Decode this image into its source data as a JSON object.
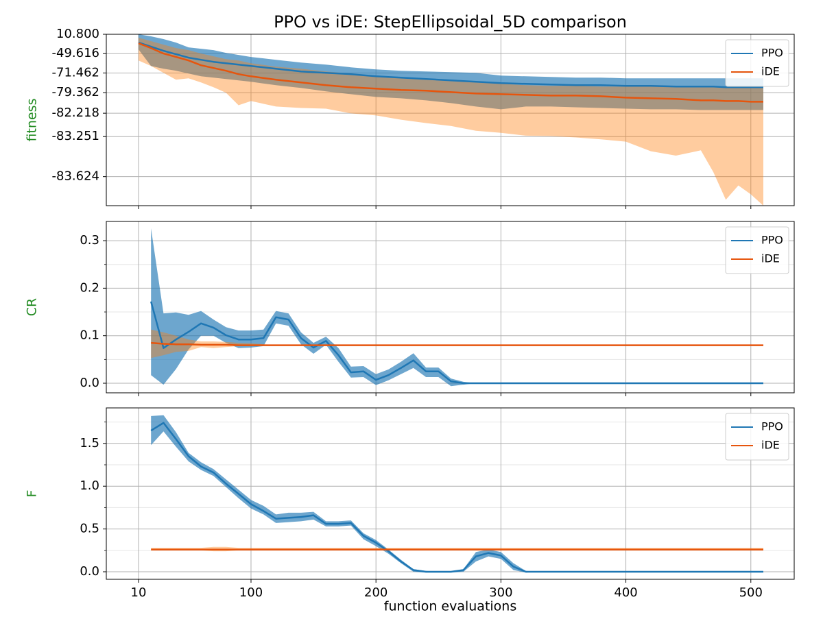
{
  "chart_data": [
    {
      "type": "line",
      "title": "PPO vs iDE: StepEllipsoidal_5D comparison",
      "ylabel": "fitness",
      "ylabel_color": "#228b22",
      "x": [
        10,
        20,
        30,
        40,
        50,
        60,
        70,
        80,
        90,
        100,
        120,
        140,
        160,
        180,
        200,
        220,
        240,
        260,
        280,
        300,
        320,
        340,
        360,
        380,
        400,
        420,
        440,
        460,
        470,
        480,
        490,
        500,
        510
      ],
      "xlim": [
        -15.8,
        534.7
      ],
      "xticks": [
        10,
        100,
        200,
        300,
        400,
        500
      ],
      "ylim": [
        -83.664,
        10.8
      ],
      "yscale": "log",
      "ylog_shift": 83.675,
      "yticks": [
        {
          "value": 10.8,
          "label": "10.800"
        },
        {
          "value": -49.616,
          "label": "-49.616"
        },
        {
          "value": -71.462,
          "label": "-71.462"
        },
        {
          "value": -79.362,
          "label": "-79.362"
        },
        {
          "value": -82.218,
          "label": "-82.218"
        },
        {
          "value": -83.251,
          "label": "-83.251"
        },
        {
          "value": -83.624,
          "label": "-83.624"
        }
      ],
      "grid": true,
      "legend": "upper right",
      "series": [
        {
          "name": "PPO",
          "color": "#1f77b4",
          "band_color": "#1f77b4",
          "band_alpha": 0.65,
          "values": [
            -22.64,
            -34.61,
            -44.23,
            -50.79,
            -56.26,
            -59.09,
            -61.63,
            -63.18,
            -64.62,
            -65.96,
            -68.36,
            -70.43,
            -71.36,
            -72.22,
            -73.41,
            -74.12,
            -74.79,
            -75.42,
            -76.0,
            -76.54,
            -76.79,
            -77.04,
            -77.27,
            -77.27,
            -77.5,
            -77.5,
            -77.72,
            -77.72,
            -77.72,
            -77.93,
            -77.93,
            -77.93,
            -77.93
          ],
          "upper": [
            10.8,
            1.02,
            -10.46,
            -22.64,
            -36.36,
            -39.68,
            -42.77,
            -48.31,
            -51.96,
            -55.24,
            -59.09,
            -62.42,
            -64.62,
            -67.2,
            -68.9,
            -69.94,
            -70.43,
            -70.9,
            -71.36,
            -73.03,
            -73.41,
            -73.77,
            -74.12,
            -74.12,
            -74.46,
            -74.46,
            -74.46,
            -74.46,
            -74.46,
            -74.46,
            -74.46,
            -74.46,
            -74.46
          ],
          "lower": [
            -41.25,
            -65.96,
            -68.36,
            -69.94,
            -71.8,
            -73.41,
            -74.12,
            -74.79,
            -75.42,
            -76.0,
            -77.27,
            -78.14,
            -79.06,
            -79.69,
            -80.23,
            -80.47,
            -80.8,
            -81.19,
            -81.6,
            -81.88,
            -81.6,
            -81.6,
            -81.68,
            -81.75,
            -81.82,
            -81.88,
            -81.88,
            -81.95,
            -81.95,
            -81.95,
            -81.95,
            -81.95,
            -81.95
          ]
        },
        {
          "name": "iDE",
          "color": "#e6550d",
          "band_color": "#ff7f0e",
          "band_alpha": 0.4,
          "values": [
            -24.82,
            -38.05,
            -49.57,
            -55.24,
            -59.97,
            -65.3,
            -67.79,
            -69.94,
            -72.22,
            -73.41,
            -75.11,
            -76.27,
            -77.27,
            -77.93,
            -78.34,
            -78.71,
            -78.89,
            -79.23,
            -79.54,
            -79.69,
            -79.83,
            -79.97,
            -79.97,
            -80.1,
            -80.35,
            -80.47,
            -80.58,
            -80.8,
            -80.8,
            -80.9,
            -80.9,
            -81.0,
            -81.0
          ],
          "upper": [
            -4.93,
            -18.03,
            -28.95,
            -38.05,
            -42.77,
            -49.57,
            -54.19,
            -58.18,
            -59.97,
            -63.18,
            -66.59,
            -68.36,
            -70.43,
            -71.8,
            -73.03,
            -74.12,
            -75.11,
            -75.71,
            -76.27,
            -76.79,
            -77.27,
            -77.5,
            -77.5,
            -77.72,
            -77.72,
            -77.72,
            -77.72,
            -77.93,
            -77.93,
            -77.93,
            -77.93,
            -77.93,
            -77.93
          ],
          "lower": [
            -59.97,
            -65.96,
            -71.36,
            -75.11,
            -74.46,
            -76.27,
            -77.93,
            -79.38,
            -81.45,
            -80.9,
            -81.6,
            -81.75,
            -81.82,
            -82.23,
            -82.38,
            -82.64,
            -82.81,
            -82.93,
            -83.1,
            -83.16,
            -83.23,
            -83.24,
            -83.27,
            -83.31,
            -83.35,
            -83.48,
            -83.52,
            -83.47,
            -83.61,
            -83.66,
            -83.643,
            -83.655,
            -83.664
          ]
        }
      ]
    },
    {
      "type": "line",
      "ylabel": "CR",
      "ylabel_color": "#228b22",
      "x": [
        20,
        30,
        40,
        50,
        60,
        70,
        80,
        90,
        100,
        110,
        120,
        130,
        140,
        150,
        160,
        170,
        180,
        190,
        200,
        210,
        220,
        230,
        240,
        250,
        260,
        270,
        280,
        290,
        300,
        310,
        320,
        330,
        350,
        370,
        390,
        410,
        430,
        450,
        470,
        490,
        510
      ],
      "xlim": [
        -15.8,
        534.7
      ],
      "xticks": [
        10,
        100,
        200,
        300,
        400,
        500
      ],
      "ylim": [
        -0.0202,
        0.3405
      ],
      "yticks": [
        {
          "value": 0,
          "label": "0.0"
        },
        0.1,
        0.2,
        0.3
      ],
      "minor_yticks": [
        0.05,
        0.15,
        0.25
      ],
      "grid": true,
      "legend": "upper right",
      "series": [
        {
          "name": "PPO",
          "color": "#1f77b4",
          "band_color": "#1f77b4",
          "band_alpha": 0.65,
          "values": [
            0.172,
            0.074,
            0.092,
            0.108,
            0.126,
            0.117,
            0.101,
            0.092,
            0.092,
            0.095,
            0.139,
            0.134,
            0.095,
            0.075,
            0.089,
            0.059,
            0.023,
            0.025,
            0.007,
            0.017,
            0.032,
            0.048,
            0.025,
            0.025,
            0.004,
            0,
            0,
            0,
            0,
            0,
            0,
            0,
            0,
            0,
            0,
            0,
            0,
            0,
            0,
            0,
            0
          ],
          "upper": [
            0.326,
            0.147,
            0.149,
            0.144,
            0.152,
            0.134,
            0.118,
            0.111,
            0.111,
            0.113,
            0.152,
            0.147,
            0.107,
            0.085,
            0.098,
            0.074,
            0.035,
            0.036,
            0.019,
            0.029,
            0.045,
            0.063,
            0.033,
            0.033,
            0.01,
            0.003,
            0,
            0,
            0,
            0,
            0,
            0,
            0,
            0,
            0,
            0,
            0,
            0,
            0,
            0,
            0
          ],
          "lower": [
            0.017,
            -0.003,
            0.03,
            0.071,
            0.1,
            0.1,
            0.085,
            0.074,
            0.075,
            0.078,
            0.126,
            0.121,
            0.082,
            0.062,
            0.081,
            0.045,
            0.012,
            0.013,
            -0.004,
            0.006,
            0.019,
            0.032,
            0.013,
            0.013,
            -0.006,
            -0.003,
            0,
            0,
            0,
            0,
            0,
            0,
            0,
            0,
            0,
            0,
            0,
            0,
            0,
            0,
            0
          ]
        },
        {
          "name": "iDE",
          "color": "#e6550d",
          "band_color": "#ff7f0e",
          "band_alpha": 0.4,
          "values": [
            0.085,
            0.083,
            0.082,
            0.082,
            0.081,
            0.081,
            0.081,
            0.08,
            0.08,
            0.08,
            0.08,
            0.08,
            0.08,
            0.08,
            0.08,
            0.08,
            0.08,
            0.08,
            0.08,
            0.08,
            0.08,
            0.08,
            0.08,
            0.08,
            0.08,
            0.08,
            0.08,
            0.08,
            0.08,
            0.08,
            0.08,
            0.08,
            0.08,
            0.08,
            0.08,
            0.08,
            0.08,
            0.08,
            0.08,
            0.08,
            0.08
          ],
          "upper": [
            0.113,
            0.107,
            0.1,
            0.092,
            0.088,
            0.088,
            0.087,
            0.085,
            0.084,
            0.082,
            0.081,
            0.081,
            0.081,
            0.081,
            0.081,
            0.081,
            0.081,
            0.081,
            0.081,
            0.081,
            0.081,
            0.081,
            0.081,
            0.081,
            0.081,
            0.081,
            0.081,
            0.081,
            0.081,
            0.081,
            0.081,
            0.081,
            0.081,
            0.081,
            0.081,
            0.081,
            0.081,
            0.081,
            0.081,
            0.081,
            0.081
          ],
          "lower": [
            0.053,
            0.059,
            0.066,
            0.068,
            0.076,
            0.074,
            0.076,
            0.078,
            0.078,
            0.079,
            0.079,
            0.079,
            0.079,
            0.079,
            0.079,
            0.079,
            0.079,
            0.079,
            0.079,
            0.079,
            0.079,
            0.079,
            0.079,
            0.079,
            0.079,
            0.079,
            0.079,
            0.079,
            0.079,
            0.079,
            0.079,
            0.079,
            0.079,
            0.079,
            0.079,
            0.079,
            0.079,
            0.079,
            0.079,
            0.079,
            0.079
          ]
        }
      ]
    },
    {
      "type": "line",
      "ylabel": "F",
      "ylabel_color": "#228b22",
      "xlabel": "function evaluations",
      "x": [
        20,
        30,
        40,
        50,
        60,
        70,
        80,
        90,
        100,
        110,
        120,
        130,
        140,
        150,
        160,
        170,
        180,
        190,
        200,
        210,
        220,
        230,
        240,
        250,
        260,
        270,
        280,
        290,
        300,
        310,
        320,
        330,
        350,
        370,
        390,
        410,
        430,
        450,
        470,
        490,
        510
      ],
      "xlim": [
        -15.8,
        534.7
      ],
      "xticks": [
        10,
        100,
        200,
        300,
        400,
        500
      ],
      "ylim": [
        -0.088,
        1.915
      ],
      "yticks": [
        {
          "value": 0,
          "label": "0.0"
        },
        0.5,
        {
          "value": 1,
          "label": "1.0"
        },
        1.5
      ],
      "minor_yticks": [
        0.25,
        0.75,
        1.25,
        1.75
      ],
      "grid": true,
      "legend": "upper right",
      "series": [
        {
          "name": "PPO",
          "color": "#1f77b4",
          "band_color": "#1f77b4",
          "band_alpha": 0.65,
          "values": [
            1.65,
            1.74,
            1.55,
            1.35,
            1.23,
            1.16,
            1.03,
            0.91,
            0.79,
            0.71,
            0.62,
            0.63,
            0.64,
            0.66,
            0.56,
            0.56,
            0.57,
            0.42,
            0.34,
            0.24,
            0.12,
            0.02,
            0,
            0,
            0,
            0.02,
            0.18,
            0.22,
            0.19,
            0.06,
            0,
            0,
            0,
            0,
            0,
            0,
            0,
            0,
            0,
            0,
            0
          ],
          "upper": [
            1.82,
            1.83,
            1.63,
            1.39,
            1.28,
            1.2,
            1.08,
            0.96,
            0.84,
            0.77,
            0.67,
            0.69,
            0.69,
            0.7,
            0.59,
            0.59,
            0.6,
            0.45,
            0.37,
            0.26,
            0.14,
            0.03,
            0.01,
            0,
            0,
            0.03,
            0.23,
            0.26,
            0.23,
            0.1,
            0.01,
            0,
            0,
            0,
            0,
            0,
            0,
            0,
            0,
            0,
            0
          ],
          "lower": [
            1.48,
            1.64,
            1.46,
            1.29,
            1.19,
            1.12,
            0.99,
            0.86,
            0.74,
            0.67,
            0.57,
            0.58,
            0.59,
            0.61,
            0.53,
            0.53,
            0.54,
            0.38,
            0.3,
            0.21,
            0.1,
            0,
            -0.01,
            -0.01,
            -0.01,
            0,
            0.12,
            0.18,
            0.15,
            0.02,
            -0.01,
            0,
            0,
            0,
            0,
            0,
            0,
            0,
            0,
            0,
            0
          ]
        },
        {
          "name": "iDE",
          "color": "#e6550d",
          "band_color": "#ff7f0e",
          "band_alpha": 0.4,
          "values": [
            0.26,
            0.26,
            0.26,
            0.26,
            0.26,
            0.26,
            0.26,
            0.26,
            0.26,
            0.26,
            0.26,
            0.26,
            0.26,
            0.26,
            0.26,
            0.26,
            0.26,
            0.26,
            0.26,
            0.26,
            0.26,
            0.26,
            0.26,
            0.26,
            0.26,
            0.26,
            0.26,
            0.26,
            0.26,
            0.26,
            0.26,
            0.26,
            0.26,
            0.26,
            0.26,
            0.26,
            0.26,
            0.26,
            0.26,
            0.26,
            0.26
          ],
          "upper": [
            0.28,
            0.28,
            0.28,
            0.28,
            0.28,
            0.29,
            0.29,
            0.28,
            0.28,
            0.28,
            0.28,
            0.28,
            0.28,
            0.28,
            0.28,
            0.28,
            0.28,
            0.28,
            0.28,
            0.28,
            0.28,
            0.28,
            0.28,
            0.28,
            0.28,
            0.28,
            0.28,
            0.28,
            0.28,
            0.28,
            0.28,
            0.28,
            0.28,
            0.28,
            0.28,
            0.28,
            0.28,
            0.28,
            0.28,
            0.28,
            0.28
          ],
          "lower": [
            0.25,
            0.25,
            0.25,
            0.25,
            0.25,
            0.24,
            0.24,
            0.25,
            0.25,
            0.25,
            0.25,
            0.25,
            0.25,
            0.25,
            0.25,
            0.25,
            0.25,
            0.25,
            0.25,
            0.25,
            0.25,
            0.25,
            0.25,
            0.25,
            0.25,
            0.25,
            0.25,
            0.25,
            0.25,
            0.25,
            0.25,
            0.25,
            0.25,
            0.25,
            0.25,
            0.25,
            0.25,
            0.25,
            0.25,
            0.25,
            0.25
          ]
        }
      ]
    }
  ]
}
